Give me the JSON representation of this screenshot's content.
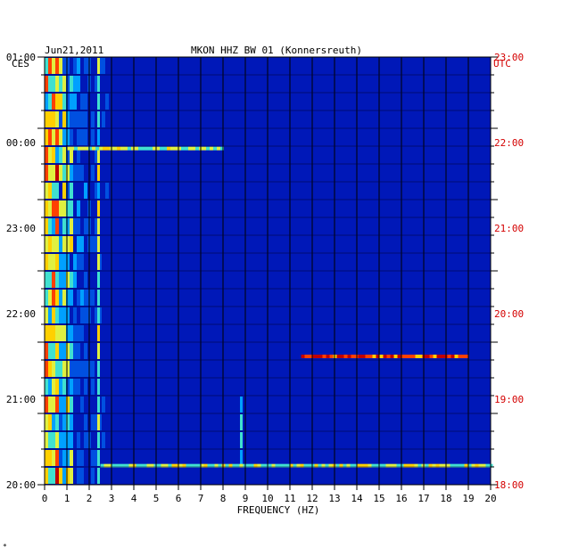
{
  "chart_data": {
    "type": "heatmap",
    "title_left": "Jun21,2011",
    "title_center": "MKON HHZ BW 01 (Konnersreuth)",
    "left_timezone": "CES",
    "right_timezone": "UTC",
    "xlabel": "FREQUENCY (HZ)",
    "xlim": [
      0,
      20
    ],
    "x_ticks": [
      "0",
      "1",
      "2",
      "3",
      "4",
      "5",
      "6",
      "7",
      "8",
      "9",
      "10",
      "11",
      "12",
      "13",
      "14",
      "15",
      "16",
      "17",
      "18",
      "19",
      "20"
    ],
    "y_ticks_left": [
      "01:00",
      "00:00",
      "23:00",
      "22:00",
      "21:00",
      "20:00"
    ],
    "y_ticks_right": [
      "23:00",
      "22:00",
      "21:00",
      "20:00",
      "19:00",
      "18:00"
    ],
    "hours_shown": 6,
    "background_color": "#0018b8",
    "colormap": [
      "#0018b8",
      "#0050e0",
      "#00a0ff",
      "#40e0d0",
      "#e0f040",
      "#ffd000",
      "#ff4000",
      "#c00000"
    ],
    "features": [
      {
        "label": "low-frequency noise band",
        "freq_range_hz": [
          0,
          1.2
        ],
        "intensity": "high"
      },
      {
        "label": "narrow line",
        "freq_hz": 2.4,
        "intensity": "high"
      },
      {
        "label": "narrow line",
        "freq_hz": 8.8,
        "time_range_utc": [
          "18:20",
          "19:15"
        ],
        "intensity": "medium"
      },
      {
        "label": "broadband event",
        "time_utc": "19:48",
        "freq_range_hz": [
          11.5,
          19
        ],
        "intensity": "very high"
      },
      {
        "label": "broadband event",
        "time_utc": "18:16",
        "freq_range_hz": [
          2.5,
          20
        ],
        "intensity": "medium"
      },
      {
        "label": "broadband event",
        "time_utc": "22:43",
        "freq_range_hz": [
          1,
          8
        ],
        "intensity": "medium"
      }
    ]
  },
  "footer_mark": "*"
}
